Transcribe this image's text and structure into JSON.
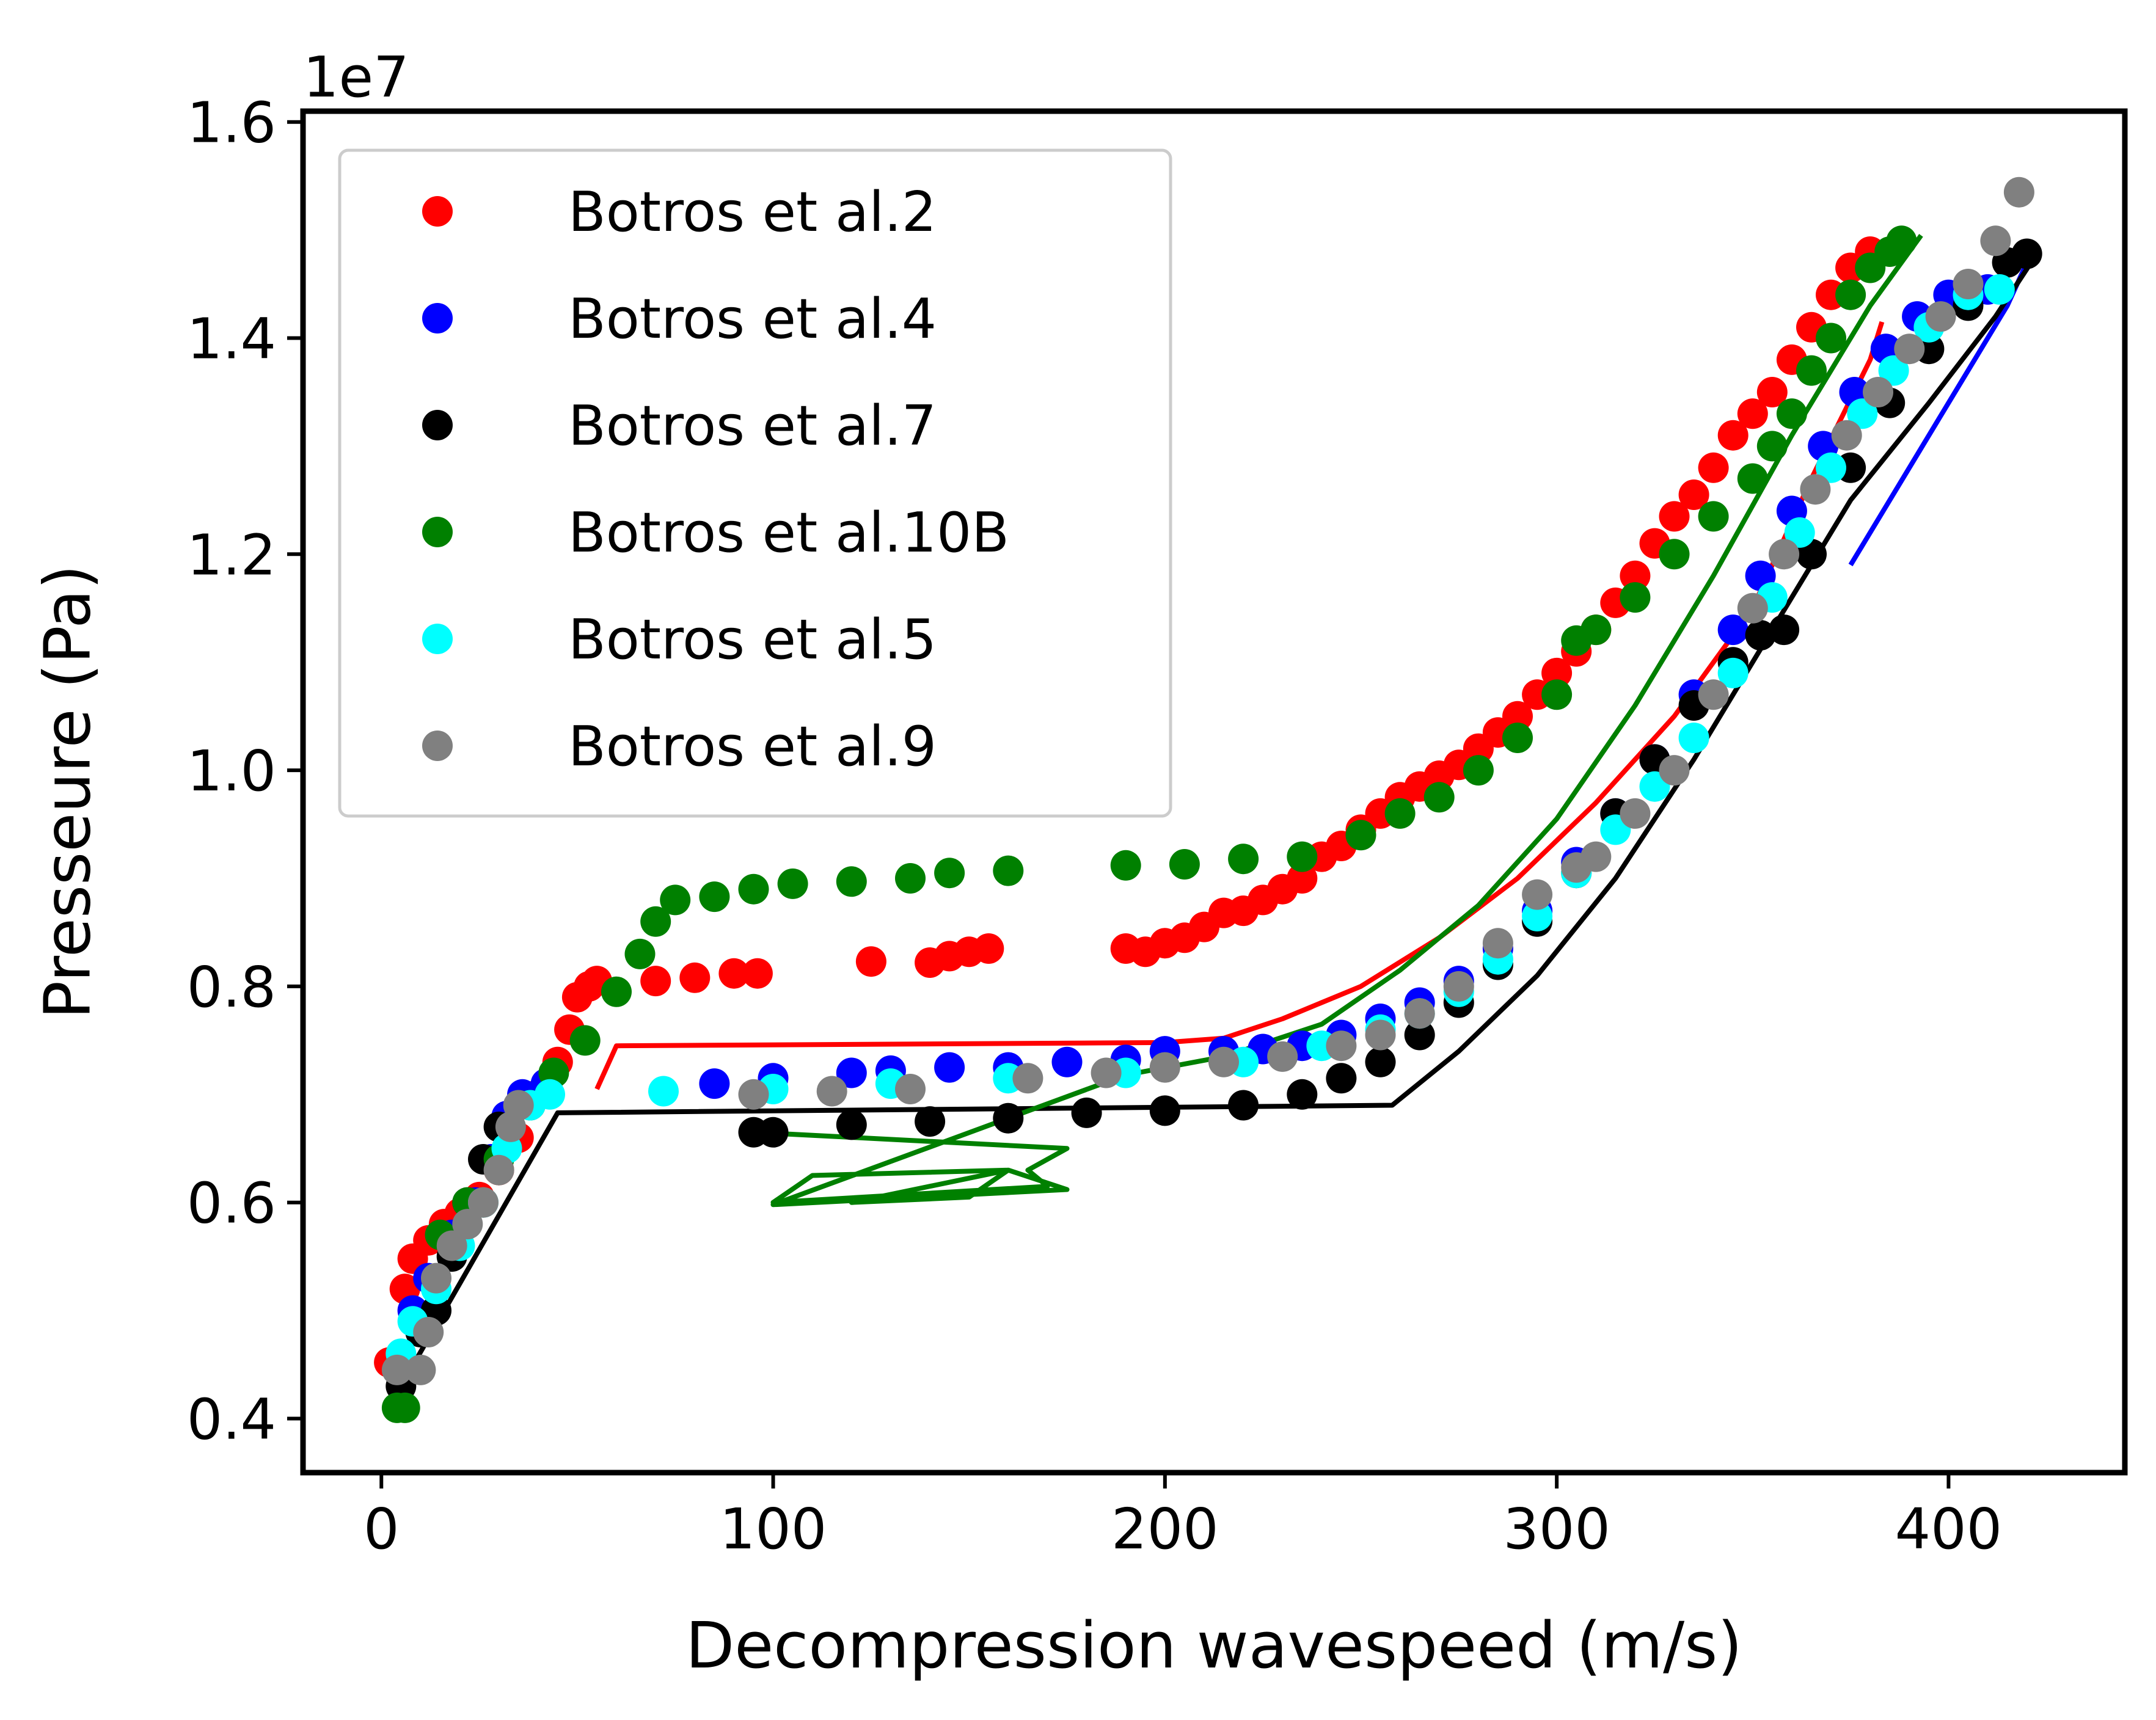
{
  "chart_data": {
    "type": "scatter",
    "title": "",
    "xlabel": "Decompression wavespeed (m/s)",
    "ylabel": "Presseure (Pa)",
    "y_offset_label": "1e7",
    "xlim": [
      -20,
      445
    ],
    "ylim": [
      0.35,
      1.61
    ],
    "x_ticks": [
      0,
      100,
      200,
      300,
      400
    ],
    "x_tick_labels": [
      "0",
      "100",
      "200",
      "300",
      "400"
    ],
    "y_ticks": [
      0.4,
      0.6,
      0.8,
      1.0,
      1.2,
      1.4,
      1.6
    ],
    "y_tick_labels": [
      "0.4",
      "0.6",
      "0.8",
      "1.0",
      "1.2",
      "1.4",
      "1.6"
    ],
    "y_unit_scale": 10000000,
    "grid": false,
    "legend_position": "top-left",
    "series": [
      {
        "name": "Botros et al.2",
        "color": "#ff0000",
        "points": [
          [
            2,
            0.452
          ],
          [
            6,
            0.52
          ],
          [
            8,
            0.548
          ],
          [
            12,
            0.565
          ],
          [
            16,
            0.58
          ],
          [
            20,
            0.59
          ],
          [
            25,
            0.605
          ],
          [
            30,
            0.63
          ],
          [
            35,
            0.66
          ],
          [
            40,
            0.7
          ],
          [
            45,
            0.73
          ],
          [
            48,
            0.76
          ],
          [
            50,
            0.79
          ],
          [
            53,
            0.8
          ],
          [
            55,
            0.805
          ],
          [
            70,
            0.805
          ],
          [
            80,
            0.808
          ],
          [
            90,
            0.812
          ],
          [
            96,
            0.812
          ],
          [
            125,
            0.823
          ],
          [
            140,
            0.822
          ],
          [
            145,
            0.828
          ],
          [
            150,
            0.832
          ],
          [
            155,
            0.835
          ],
          [
            190,
            0.835
          ],
          [
            195,
            0.832
          ],
          [
            200,
            0.84
          ],
          [
            205,
            0.845
          ],
          [
            210,
            0.855
          ],
          [
            215,
            0.868
          ],
          [
            220,
            0.87
          ],
          [
            225,
            0.88
          ],
          [
            230,
            0.89
          ],
          [
            235,
            0.9
          ],
          [
            240,
            0.92
          ],
          [
            245,
            0.93
          ],
          [
            250,
            0.945
          ],
          [
            255,
            0.96
          ],
          [
            260,
            0.975
          ],
          [
            265,
            0.985
          ],
          [
            270,
            0.995
          ],
          [
            275,
            1.005
          ],
          [
            280,
            1.02
          ],
          [
            285,
            1.035
          ],
          [
            290,
            1.05
          ],
          [
            295,
            1.07
          ],
          [
            300,
            1.09
          ],
          [
            305,
            1.11
          ],
          [
            310,
            1.13
          ],
          [
            315,
            1.155
          ],
          [
            320,
            1.18
          ],
          [
            325,
            1.21
          ],
          [
            330,
            1.235
          ],
          [
            335,
            1.255
          ],
          [
            340,
            1.28
          ],
          [
            345,
            1.31
          ],
          [
            350,
            1.33
          ],
          [
            355,
            1.35
          ],
          [
            360,
            1.38
          ],
          [
            365,
            1.41
          ],
          [
            370,
            1.44
          ],
          [
            375,
            1.465
          ],
          [
            380,
            1.48
          ]
        ]
      },
      {
        "name": "Botros et al.4",
        "color": "#0000ff",
        "points": [
          [
            5,
            0.45
          ],
          [
            8,
            0.5
          ],
          [
            12,
            0.53
          ],
          [
            18,
            0.57
          ],
          [
            24,
            0.6
          ],
          [
            28,
            0.64
          ],
          [
            32,
            0.68
          ],
          [
            36,
            0.7
          ],
          [
            42,
            0.71
          ],
          [
            85,
            0.71
          ],
          [
            100,
            0.715
          ],
          [
            120,
            0.72
          ],
          [
            130,
            0.722
          ],
          [
            145,
            0.725
          ],
          [
            160,
            0.725
          ],
          [
            175,
            0.73
          ],
          [
            190,
            0.732
          ],
          [
            200,
            0.74
          ],
          [
            215,
            0.74
          ],
          [
            225,
            0.742
          ],
          [
            235,
            0.745
          ],
          [
            245,
            0.755
          ],
          [
            255,
            0.77
          ],
          [
            265,
            0.785
          ],
          [
            275,
            0.805
          ],
          [
            285,
            0.835
          ],
          [
            295,
            0.87
          ],
          [
            305,
            0.915
          ],
          [
            315,
            0.96
          ],
          [
            325,
            1.01
          ],
          [
            335,
            1.07
          ],
          [
            345,
            1.13
          ],
          [
            352,
            1.18
          ],
          [
            360,
            1.24
          ],
          [
            368,
            1.3
          ],
          [
            376,
            1.35
          ],
          [
            384,
            1.39
          ],
          [
            392,
            1.42
          ],
          [
            400,
            1.44
          ],
          [
            410,
            1.445
          ]
        ]
      },
      {
        "name": "Botros et al.7",
        "color": "#000000",
        "points": [
          [
            5,
            0.43
          ],
          [
            10,
            0.48
          ],
          [
            14,
            0.5
          ],
          [
            18,
            0.55
          ],
          [
            22,
            0.6
          ],
          [
            26,
            0.64
          ],
          [
            30,
            0.67
          ],
          [
            95,
            0.665
          ],
          [
            100,
            0.665
          ],
          [
            120,
            0.672
          ],
          [
            140,
            0.675
          ],
          [
            160,
            0.678
          ],
          [
            180,
            0.683
          ],
          [
            200,
            0.685
          ],
          [
            220,
            0.69
          ],
          [
            235,
            0.7
          ],
          [
            245,
            0.715
          ],
          [
            255,
            0.73
          ],
          [
            265,
            0.755
          ],
          [
            275,
            0.785
          ],
          [
            285,
            0.82
          ],
          [
            295,
            0.86
          ],
          [
            305,
            0.905
          ],
          [
            315,
            0.96
          ],
          [
            325,
            1.01
          ],
          [
            335,
            1.06
          ],
          [
            345,
            1.1
          ],
          [
            352,
            1.125
          ],
          [
            358,
            1.13
          ],
          [
            365,
            1.2
          ],
          [
            375,
            1.28
          ],
          [
            385,
            1.34
          ],
          [
            395,
            1.39
          ],
          [
            405,
            1.43
          ],
          [
            415,
            1.47
          ],
          [
            420,
            1.478
          ]
        ]
      },
      {
        "name": "Botros et al.10B",
        "color": "#008000",
        "points": [
          [
            4,
            0.41
          ],
          [
            6,
            0.41
          ],
          [
            15,
            0.57
          ],
          [
            22,
            0.6
          ],
          [
            30,
            0.64
          ],
          [
            38,
            0.69
          ],
          [
            44,
            0.72
          ],
          [
            52,
            0.75
          ],
          [
            60,
            0.795
          ],
          [
            66,
            0.83
          ],
          [
            70,
            0.86
          ],
          [
            75,
            0.88
          ],
          [
            85,
            0.883
          ],
          [
            95,
            0.89
          ],
          [
            105,
            0.895
          ],
          [
            120,
            0.897
          ],
          [
            135,
            0.9
          ],
          [
            145,
            0.905
          ],
          [
            160,
            0.907
          ],
          [
            190,
            0.912
          ],
          [
            205,
            0.913
          ],
          [
            220,
            0.918
          ],
          [
            235,
            0.92
          ],
          [
            250,
            0.94
          ],
          [
            260,
            0.96
          ],
          [
            270,
            0.975
          ],
          [
            280,
            1.0
          ],
          [
            290,
            1.03
          ],
          [
            300,
            1.07
          ],
          [
            305,
            1.12
          ],
          [
            310,
            1.13
          ],
          [
            320,
            1.16
          ],
          [
            330,
            1.2
          ],
          [
            340,
            1.235
          ],
          [
            350,
            1.27
          ],
          [
            355,
            1.3
          ],
          [
            360,
            1.33
          ],
          [
            365,
            1.37
          ],
          [
            370,
            1.4
          ],
          [
            375,
            1.44
          ],
          [
            380,
            1.465
          ],
          [
            385,
            1.48
          ],
          [
            388,
            1.49
          ]
        ]
      },
      {
        "name": "Botros et al.5",
        "color": "#00ffff",
        "points": [
          [
            5,
            0.46
          ],
          [
            8,
            0.49
          ],
          [
            14,
            0.52
          ],
          [
            20,
            0.56
          ],
          [
            26,
            0.6
          ],
          [
            32,
            0.65
          ],
          [
            38,
            0.69
          ],
          [
            43,
            0.7
          ],
          [
            72,
            0.703
          ],
          [
            100,
            0.705
          ],
          [
            130,
            0.71
          ],
          [
            160,
            0.715
          ],
          [
            190,
            0.72
          ],
          [
            220,
            0.73
          ],
          [
            240,
            0.745
          ],
          [
            255,
            0.76
          ],
          [
            265,
            0.775
          ],
          [
            275,
            0.795
          ],
          [
            285,
            0.825
          ],
          [
            295,
            0.865
          ],
          [
            305,
            0.905
          ],
          [
            315,
            0.945
          ],
          [
            325,
            0.985
          ],
          [
            335,
            1.03
          ],
          [
            345,
            1.09
          ],
          [
            355,
            1.16
          ],
          [
            362,
            1.22
          ],
          [
            370,
            1.28
          ],
          [
            378,
            1.33
          ],
          [
            386,
            1.37
          ],
          [
            395,
            1.41
          ],
          [
            405,
            1.44
          ],
          [
            413,
            1.445
          ]
        ]
      },
      {
        "name": "Botros et al.9",
        "color": "#808080",
        "points": [
          [
            4,
            0.445
          ],
          [
            10,
            0.445
          ],
          [
            12,
            0.48
          ],
          [
            14,
            0.53
          ],
          [
            18,
            0.56
          ],
          [
            22,
            0.58
          ],
          [
            26,
            0.6
          ],
          [
            30,
            0.63
          ],
          [
            33,
            0.67
          ],
          [
            35,
            0.69
          ],
          [
            95,
            0.7
          ],
          [
            115,
            0.703
          ],
          [
            135,
            0.705
          ],
          [
            165,
            0.715
          ],
          [
            185,
            0.72
          ],
          [
            200,
            0.725
          ],
          [
            215,
            0.73
          ],
          [
            230,
            0.735
          ],
          [
            245,
            0.745
          ],
          [
            255,
            0.755
          ],
          [
            265,
            0.775
          ],
          [
            275,
            0.8
          ],
          [
            285,
            0.84
          ],
          [
            295,
            0.885
          ],
          [
            305,
            0.91
          ],
          [
            310,
            0.92
          ],
          [
            320,
            0.96
          ],
          [
            330,
            1.0
          ],
          [
            340,
            1.07
          ],
          [
            350,
            1.15
          ],
          [
            358,
            1.2
          ],
          [
            366,
            1.26
          ],
          [
            374,
            1.31
          ],
          [
            382,
            1.35
          ],
          [
            390,
            1.39
          ],
          [
            398,
            1.42
          ],
          [
            405,
            1.45
          ],
          [
            412,
            1.49
          ],
          [
            418,
            1.535
          ]
        ]
      }
    ],
    "lines": [
      {
        "color": "#ff0000",
        "points": [
          [
            55,
            0.705
          ],
          [
            60,
            0.745
          ],
          [
            200,
            0.748
          ],
          [
            215,
            0.752
          ],
          [
            230,
            0.77
          ],
          [
            250,
            0.8
          ],
          [
            270,
            0.845
          ],
          [
            290,
            0.9
          ],
          [
            310,
            0.97
          ],
          [
            330,
            1.05
          ],
          [
            350,
            1.15
          ],
          [
            365,
            1.27
          ],
          [
            380,
            1.38
          ],
          [
            383,
            1.415
          ]
        ]
      },
      {
        "color": "#0000ff",
        "points": [
          [
            375,
            1.19
          ],
          [
            400,
            1.34
          ],
          [
            415,
            1.43
          ],
          [
            420,
            1.47
          ]
        ]
      },
      {
        "color": "#000000",
        "points": [
          [
            5,
            0.43
          ],
          [
            45,
            0.683
          ],
          [
            258,
            0.69
          ],
          [
            275,
            0.74
          ],
          [
            295,
            0.81
          ],
          [
            315,
            0.9
          ],
          [
            335,
            1.01
          ],
          [
            355,
            1.13
          ],
          [
            375,
            1.25
          ],
          [
            395,
            1.34
          ],
          [
            412,
            1.42
          ],
          [
            422,
            1.475
          ]
        ]
      },
      {
        "color": "#008000",
        "points": [
          [
            95,
            0.665
          ],
          [
            175,
            0.65
          ],
          [
            165,
            0.63
          ],
          [
            170,
            0.615
          ],
          [
            100,
            0.6
          ],
          [
            110,
            0.625
          ],
          [
            160,
            0.63
          ],
          [
            150,
            0.605
          ],
          [
            120,
            0.6
          ],
          [
            160,
            0.63
          ],
          [
            175,
            0.612
          ],
          [
            100,
            0.598
          ],
          [
            190,
            0.718
          ],
          [
            215,
            0.735
          ],
          [
            240,
            0.765
          ],
          [
            260,
            0.815
          ],
          [
            280,
            0.875
          ],
          [
            300,
            0.955
          ],
          [
            320,
            1.06
          ],
          [
            340,
            1.18
          ],
          [
            360,
            1.31
          ],
          [
            380,
            1.43
          ],
          [
            393,
            1.495
          ]
        ]
      }
    ]
  }
}
